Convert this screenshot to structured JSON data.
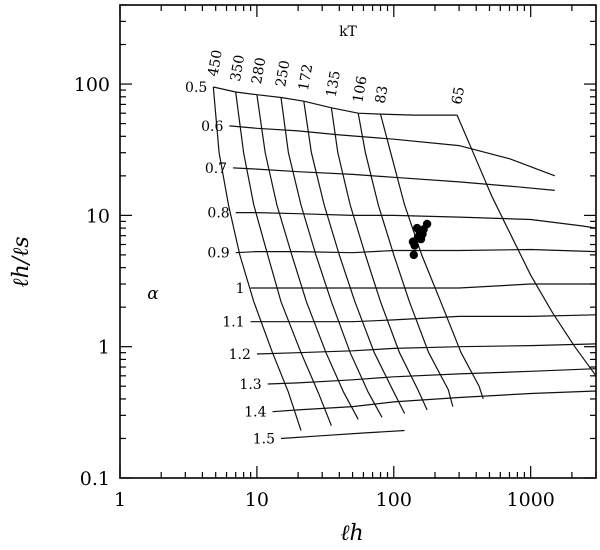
{
  "chart_data": {
    "type": "line",
    "xlabel": "ℓh",
    "ylabel": "ℓh/ℓs",
    "xscale": "log",
    "yscale": "log",
    "xlim": [
      1,
      3000
    ],
    "ylim": [
      0.1,
      400
    ],
    "xticks": [
      {
        "value": 1,
        "label": "1"
      },
      {
        "value": 10,
        "label": "10"
      },
      {
        "value": 100,
        "label": "100"
      },
      {
        "value": 1000,
        "label": "1000"
      }
    ],
    "yticks": [
      {
        "value": 0.1,
        "label": "0.1"
      },
      {
        "value": 1,
        "label": "1"
      },
      {
        "value": 10,
        "label": "10"
      },
      {
        "value": 100,
        "label": "100"
      }
    ],
    "alpha_symbol": "α",
    "kt_title": "kT",
    "alpha_curves": [
      {
        "label": "0.5",
        "points": [
          [
            4.8,
            95
          ],
          [
            7,
            87
          ],
          [
            10,
            83
          ],
          [
            15,
            79
          ],
          [
            22,
            74
          ],
          [
            35,
            66
          ],
          [
            55,
            60
          ],
          [
            80,
            59
          ],
          [
            140,
            58
          ],
          [
            290,
            58
          ]
        ]
      },
      {
        "label": "0.6",
        "points": [
          [
            6.3,
            48
          ],
          [
            10,
            46
          ],
          [
            20,
            44
          ],
          [
            40,
            41
          ],
          [
            100,
            38
          ],
          [
            300,
            34
          ],
          [
            700,
            27
          ],
          [
            1500,
            20
          ]
        ]
      },
      {
        "label": "0.7",
        "points": [
          [
            6.7,
            23
          ],
          [
            10,
            22.5
          ],
          [
            20,
            21.5
          ],
          [
            50,
            20.5
          ],
          [
            100,
            19.5
          ],
          [
            300,
            18
          ],
          [
            800,
            16.5
          ],
          [
            1500,
            15.5
          ]
        ]
      },
      {
        "label": "0.8",
        "points": [
          [
            7,
            10.5
          ],
          [
            10,
            10.5
          ],
          [
            20,
            10.3
          ],
          [
            50,
            10
          ],
          [
            100,
            10
          ],
          [
            300,
            9.7
          ],
          [
            1000,
            9.3
          ],
          [
            2400,
            8.3
          ],
          [
            3000,
            8
          ]
        ]
      },
      {
        "label": "0.9",
        "points": [
          [
            7,
            5.2
          ],
          [
            10,
            5.3
          ],
          [
            20,
            5.3
          ],
          [
            50,
            5.2
          ],
          [
            100,
            5.4
          ],
          [
            300,
            5.4
          ],
          [
            1000,
            5.5
          ],
          [
            3000,
            5.3
          ]
        ]
      },
      {
        "label": "1",
        "points": [
          [
            9,
            2.8
          ],
          [
            20,
            2.8
          ],
          [
            50,
            2.8
          ],
          [
            100,
            2.8
          ],
          [
            300,
            2.8
          ],
          [
            1000,
            3
          ],
          [
            3000,
            3
          ]
        ]
      },
      {
        "label": "1.1",
        "points": [
          [
            9,
            1.55
          ],
          [
            20,
            1.55
          ],
          [
            50,
            1.55
          ],
          [
            100,
            1.6
          ],
          [
            300,
            1.7
          ],
          [
            1000,
            1.7
          ],
          [
            3000,
            1.75
          ]
        ]
      },
      {
        "label": "1.2",
        "points": [
          [
            10,
            0.88
          ],
          [
            20,
            0.9
          ],
          [
            50,
            0.93
          ],
          [
            100,
            0.97
          ],
          [
            300,
            1
          ],
          [
            1000,
            1.02
          ],
          [
            3000,
            1.05
          ]
        ]
      },
      {
        "label": "1.3",
        "points": [
          [
            12,
            0.52
          ],
          [
            20,
            0.53
          ],
          [
            50,
            0.56
          ],
          [
            100,
            0.59
          ],
          [
            300,
            0.62
          ],
          [
            1000,
            0.65
          ],
          [
            3000,
            0.68
          ]
        ]
      },
      {
        "label": "1.4",
        "points": [
          [
            13,
            0.32
          ],
          [
            20,
            0.33
          ],
          [
            50,
            0.35
          ],
          [
            100,
            0.38
          ],
          [
            300,
            0.41
          ],
          [
            1000,
            0.44
          ],
          [
            3000,
            0.46
          ]
        ]
      },
      {
        "label": "1.5",
        "points": [
          [
            15,
            0.2
          ],
          [
            30,
            0.21
          ],
          [
            60,
            0.22
          ],
          [
            120,
            0.23
          ]
        ]
      }
    ],
    "kt_curves": [
      {
        "label": "450",
        "points": [
          [
            4.8,
            95
          ],
          [
            5.3,
            30
          ],
          [
            6.2,
            12
          ],
          [
            7.5,
            5
          ],
          [
            9.5,
            2.2
          ],
          [
            13,
            0.9
          ],
          [
            17,
            0.45
          ],
          [
            21,
            0.23
          ]
        ]
      },
      {
        "label": "350",
        "points": [
          [
            7,
            87
          ],
          [
            8,
            30
          ],
          [
            9.5,
            12
          ],
          [
            12,
            5
          ],
          [
            15,
            2.2
          ],
          [
            21,
            0.9
          ],
          [
            28,
            0.45
          ],
          [
            35,
            0.25
          ]
        ]
      },
      {
        "label": "280",
        "points": [
          [
            10,
            83
          ],
          [
            11.5,
            30
          ],
          [
            14,
            12
          ],
          [
            18,
            5
          ],
          [
            23,
            2.2
          ],
          [
            32,
            0.9
          ],
          [
            43,
            0.45
          ],
          [
            55,
            0.28
          ]
        ]
      },
      {
        "label": "250",
        "points": [
          [
            15,
            79
          ],
          [
            17,
            30
          ],
          [
            21,
            12
          ],
          [
            27,
            5
          ],
          [
            35,
            2.2
          ],
          [
            48,
            0.9
          ],
          [
            65,
            0.45
          ],
          [
            82,
            0.29
          ]
        ]
      },
      {
        "label": "172",
        "points": [
          [
            22,
            74
          ],
          [
            25,
            30
          ],
          [
            31,
            12
          ],
          [
            40,
            5
          ],
          [
            52,
            2.2
          ],
          [
            72,
            0.9
          ],
          [
            98,
            0.47
          ],
          [
            120,
            0.31
          ]
        ]
      },
      {
        "label": "135",
        "points": [
          [
            35,
            66
          ],
          [
            39,
            30
          ],
          [
            48,
            12
          ],
          [
            62,
            5
          ],
          [
            80,
            2.2
          ],
          [
            110,
            0.9
          ],
          [
            150,
            0.47
          ],
          [
            175,
            0.33
          ]
        ]
      },
      {
        "label": "106",
        "points": [
          [
            55,
            60
          ],
          [
            62,
            30
          ],
          [
            77,
            12
          ],
          [
            100,
            5
          ],
          [
            130,
            2.2
          ],
          [
            180,
            0.9
          ],
          [
            250,
            0.47
          ],
          [
            270,
            0.35
          ]
        ]
      },
      {
        "label": "83",
        "points": [
          [
            80,
            59
          ],
          [
            95,
            30
          ],
          [
            120,
            12
          ],
          [
            160,
            5
          ],
          [
            220,
            2.2
          ],
          [
            310,
            0.9
          ],
          [
            420,
            0.5
          ],
          [
            450,
            0.4
          ]
        ]
      },
      {
        "label": "65",
        "points": [
          [
            290,
            58
          ],
          [
            380,
            30
          ],
          [
            520,
            14
          ],
          [
            720,
            7
          ],
          [
            1000,
            3.5
          ],
          [
            1450,
            1.8
          ],
          [
            2100,
            1
          ],
          [
            3000,
            0.6
          ]
        ]
      }
    ],
    "data_points": [
      [
        138,
        6.3
      ],
      [
        142,
        5.9
      ],
      [
        150,
        6.8
      ],
      [
        155,
        7.4
      ],
      [
        148,
        8.0
      ],
      [
        162,
        7.2
      ],
      [
        140,
        5.0
      ],
      [
        175,
        8.6
      ],
      [
        158,
        6.6
      ],
      [
        165,
        7.8
      ]
    ]
  }
}
